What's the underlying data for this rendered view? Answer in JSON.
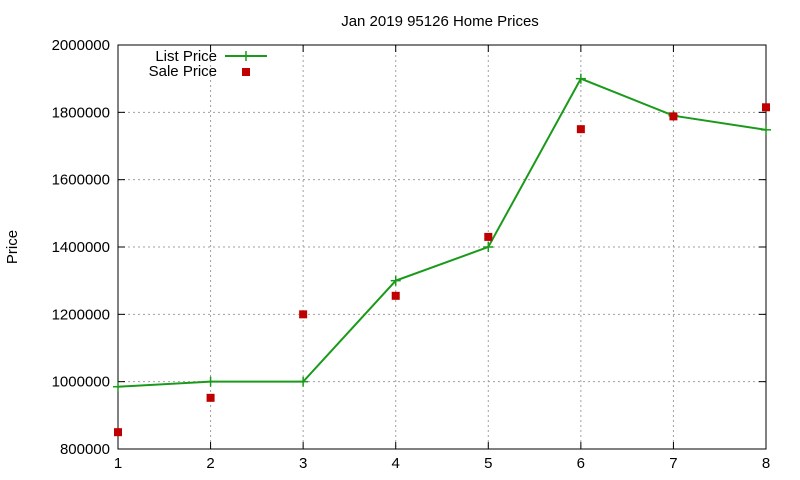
{
  "chart_data": {
    "type": "line",
    "title": "Jan 2019 95126 Home Prices",
    "xlabel": "",
    "ylabel": "Price",
    "xlim": [
      1,
      8
    ],
    "ylim": [
      800000,
      2000000
    ],
    "x_ticks": [
      1,
      2,
      3,
      4,
      5,
      6,
      7,
      8
    ],
    "y_ticks": [
      800000,
      1000000,
      1200000,
      1400000,
      1600000,
      1800000,
      2000000
    ],
    "grid": true,
    "legend_position": "top-left",
    "series": [
      {
        "name": "List Price",
        "style": "lines+points",
        "marker": "plus",
        "color": "#1a9a1a",
        "x": [
          1,
          2,
          3,
          4,
          5,
          6,
          7,
          8
        ],
        "y": [
          985000,
          1000000,
          1000000,
          1300000,
          1400000,
          1900000,
          1790000,
          1748000
        ]
      },
      {
        "name": "Sale Price",
        "style": "points",
        "marker": "square",
        "color": "#c00000",
        "x": [
          1,
          2,
          3,
          4,
          5,
          6,
          7,
          8
        ],
        "y": [
          850000,
          952000,
          1200000,
          1255000,
          1430000,
          1750000,
          1788000,
          1815000
        ]
      }
    ]
  }
}
